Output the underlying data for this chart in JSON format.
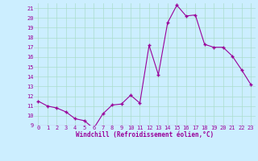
{
  "x": [
    0,
    1,
    2,
    3,
    4,
    5,
    6,
    7,
    8,
    9,
    10,
    11,
    12,
    13,
    14,
    15,
    16,
    17,
    18,
    19,
    20,
    21,
    22,
    23
  ],
  "y": [
    11.5,
    11.0,
    10.8,
    10.4,
    9.7,
    9.5,
    8.7,
    10.2,
    11.1,
    11.2,
    12.1,
    11.3,
    17.2,
    14.2,
    19.5,
    21.3,
    20.2,
    20.3,
    17.3,
    17.0,
    17.0,
    16.1,
    14.7,
    13.2
  ],
  "line_color": "#990099",
  "marker": "+",
  "bg_color": "#cceeff",
  "grid_color": "#aaddcc",
  "xlabel": "Windchill (Refroidissement éolien,°C)",
  "xlabel_color": "#990099",
  "tick_color": "#990099",
  "ylim": [
    9,
    21.5
  ],
  "xlim": [
    -0.5,
    23.5
  ],
  "yticks": [
    9,
    10,
    11,
    12,
    13,
    14,
    15,
    16,
    17,
    18,
    19,
    20,
    21
  ],
  "xticks": [
    0,
    1,
    2,
    3,
    4,
    5,
    6,
    7,
    8,
    9,
    10,
    11,
    12,
    13,
    14,
    15,
    16,
    17,
    18,
    19,
    20,
    21,
    22,
    23
  ],
  "marker_size": 3,
  "linewidth": 0.8
}
